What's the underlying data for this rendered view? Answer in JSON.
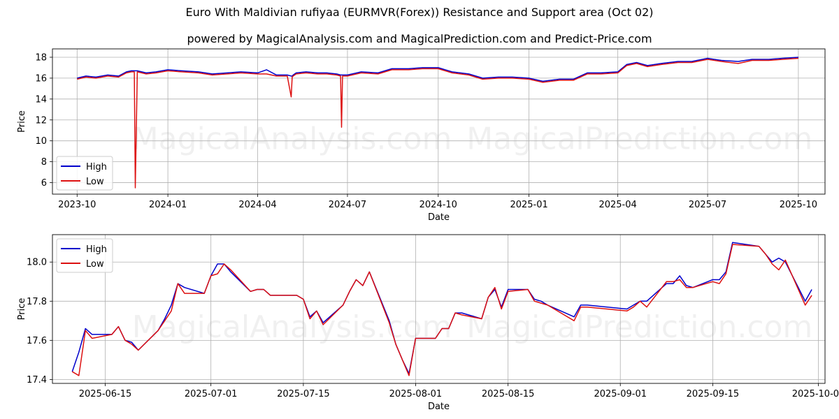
{
  "header": {
    "title": "Euro With Maldivian rufiyaa (EURMVR(Forex)) Resistance and Support area (Oct 02)",
    "subtitle": "powered by MagicalAnalysis.com and MagicalPrediction.com and Predict-Price.com"
  },
  "watermark": {
    "left": "MagicalAnalysis.com",
    "right": "MagicalPrediction.com"
  },
  "colors": {
    "high": "#0000cc",
    "low": "#dd1111",
    "grid": "#b0b0b0"
  },
  "chart_data": [
    {
      "type": "line",
      "title": "",
      "xlabel": "Date",
      "ylabel": "Price",
      "xlim": [
        "2023-09-06",
        "2025-10-28"
      ],
      "ylim": [
        4.9,
        18.8
      ],
      "x_ticks": [
        "2023-10",
        "2024-01",
        "2024-04",
        "2024-07",
        "2024-10",
        "2025-01",
        "2025-04",
        "2025-07",
        "2025-10"
      ],
      "x_tick_dates": [
        "2023-10-01",
        "2024-01-01",
        "2024-04-01",
        "2024-07-01",
        "2024-10-01",
        "2025-01-01",
        "2025-04-01",
        "2025-07-01",
        "2025-10-01"
      ],
      "y_ticks": [
        6,
        8,
        10,
        12,
        14,
        16,
        18
      ],
      "grid": true,
      "legend": "lower-left",
      "x": [
        "2023-10-01",
        "2023-10-10",
        "2023-10-20",
        "2023-11-01",
        "2023-11-12",
        "2023-11-20",
        "2023-11-25",
        "2023-11-28",
        "2023-11-29",
        "2023-12-01",
        "2023-12-10",
        "2023-12-20",
        "2024-01-01",
        "2024-01-15",
        "2024-02-01",
        "2024-02-15",
        "2024-03-01",
        "2024-03-15",
        "2024-04-01",
        "2024-04-10",
        "2024-04-20",
        "2024-05-01",
        "2024-05-05",
        "2024-05-06",
        "2024-05-07",
        "2024-05-10",
        "2024-05-20",
        "2024-06-01",
        "2024-06-10",
        "2024-06-20",
        "2024-06-24",
        "2024-06-25",
        "2024-06-26",
        "2024-07-01",
        "2024-07-15",
        "2024-08-01",
        "2024-08-15",
        "2024-09-01",
        "2024-09-15",
        "2024-10-01",
        "2024-10-15",
        "2024-11-01",
        "2024-11-15",
        "2024-12-01",
        "2024-12-15",
        "2025-01-01",
        "2025-01-15",
        "2025-02-01",
        "2025-02-15",
        "2025-03-01",
        "2025-03-15",
        "2025-04-01",
        "2025-04-10",
        "2025-04-20",
        "2025-05-01",
        "2025-05-15",
        "2025-06-01",
        "2025-06-15",
        "2025-07-01",
        "2025-07-15",
        "2025-08-01",
        "2025-08-15",
        "2025-09-01",
        "2025-09-15",
        "2025-10-01"
      ],
      "series": [
        {
          "name": "High",
          "values": [
            16.0,
            16.2,
            16.1,
            16.3,
            16.2,
            16.6,
            16.7,
            16.7,
            16.7,
            16.7,
            16.5,
            16.6,
            16.8,
            16.7,
            16.6,
            16.4,
            16.5,
            16.6,
            16.5,
            16.8,
            16.3,
            16.3,
            16.2,
            16.2,
            16.3,
            16.5,
            16.6,
            16.5,
            16.5,
            16.4,
            16.3,
            16.3,
            16.3,
            16.3,
            16.6,
            16.5,
            16.9,
            16.9,
            17.0,
            17.0,
            16.6,
            16.4,
            16.0,
            16.1,
            16.1,
            16.0,
            15.7,
            15.9,
            15.9,
            16.5,
            16.5,
            16.6,
            17.3,
            17.5,
            17.2,
            17.4,
            17.6,
            17.6,
            17.9,
            17.7,
            17.6,
            17.8,
            17.8,
            17.9,
            18.0
          ]
        },
        {
          "name": "Low",
          "values": [
            15.9,
            16.1,
            16.0,
            16.2,
            16.1,
            16.5,
            16.6,
            16.6,
            5.5,
            16.6,
            16.4,
            16.5,
            16.7,
            16.6,
            16.5,
            16.3,
            16.4,
            16.5,
            16.4,
            16.4,
            16.2,
            16.2,
            14.2,
            16.1,
            16.2,
            16.4,
            16.5,
            16.4,
            16.4,
            16.3,
            16.2,
            11.3,
            16.2,
            16.2,
            16.5,
            16.4,
            16.8,
            16.8,
            16.9,
            16.9,
            16.5,
            16.3,
            15.9,
            16.0,
            16.0,
            15.9,
            15.6,
            15.8,
            15.8,
            16.4,
            16.4,
            16.5,
            17.2,
            17.4,
            17.1,
            17.3,
            17.5,
            17.5,
            17.8,
            17.6,
            17.4,
            17.7,
            17.7,
            17.8,
            17.9
          ]
        }
      ]
    },
    {
      "type": "line",
      "title": "",
      "xlabel": "Date",
      "ylabel": "Price",
      "xlim": [
        "2025-06-07",
        "2025-10-02"
      ],
      "ylim": [
        17.38,
        18.14
      ],
      "x_ticks": [
        "2025-06-15",
        "2025-07-01",
        "2025-07-15",
        "2025-08-01",
        "2025-08-15",
        "2025-09-01",
        "2025-09-15",
        "2025-10-01"
      ],
      "y_ticks": [
        "17.4",
        "17.6",
        "17.8",
        "18.0"
      ],
      "grid": true,
      "legend": "upper-left",
      "x": [
        "2025-06-10",
        "2025-06-11",
        "2025-06-12",
        "2025-06-13",
        "2025-06-16",
        "2025-06-17",
        "2025-06-18",
        "2025-06-19",
        "2025-06-20",
        "2025-06-23",
        "2025-06-24",
        "2025-06-25",
        "2025-06-26",
        "2025-06-27",
        "2025-06-30",
        "2025-07-01",
        "2025-07-02",
        "2025-07-03",
        "2025-07-04",
        "2025-07-07",
        "2025-07-08",
        "2025-07-09",
        "2025-07-10",
        "2025-07-11",
        "2025-07-14",
        "2025-07-15",
        "2025-07-16",
        "2025-07-17",
        "2025-07-18",
        "2025-07-21",
        "2025-07-22",
        "2025-07-23",
        "2025-07-24",
        "2025-07-25",
        "2025-07-28",
        "2025-07-29",
        "2025-07-30",
        "2025-07-31",
        "2025-08-01",
        "2025-08-04",
        "2025-08-05",
        "2025-08-06",
        "2025-08-07",
        "2025-08-08",
        "2025-08-11",
        "2025-08-12",
        "2025-08-13",
        "2025-08-14",
        "2025-08-15",
        "2025-08-18",
        "2025-08-19",
        "2025-08-20",
        "2025-08-21",
        "2025-08-25",
        "2025-08-26",
        "2025-08-27",
        "2025-09-02",
        "2025-09-03",
        "2025-09-04",
        "2025-09-05",
        "2025-09-08",
        "2025-09-09",
        "2025-09-10",
        "2025-09-11",
        "2025-09-12",
        "2025-09-15",
        "2025-09-16",
        "2025-09-17",
        "2025-09-18",
        "2025-09-22",
        "2025-09-23",
        "2025-09-24",
        "2025-09-25",
        "2025-09-26",
        "2025-09-29",
        "2025-09-30"
      ],
      "series": [
        {
          "name": "High",
          "values": [
            17.44,
            17.54,
            17.66,
            17.63,
            17.63,
            17.67,
            17.6,
            17.59,
            17.55,
            17.65,
            17.71,
            17.78,
            17.89,
            17.87,
            17.84,
            17.93,
            17.99,
            17.99,
            17.95,
            17.85,
            17.86,
            17.86,
            17.83,
            17.83,
            17.83,
            17.81,
            17.72,
            17.75,
            17.69,
            17.78,
            17.85,
            17.91,
            17.88,
            17.95,
            17.7,
            17.58,
            17.5,
            17.43,
            17.61,
            17.61,
            17.66,
            17.66,
            17.74,
            17.74,
            17.71,
            17.82,
            17.86,
            17.77,
            17.86,
            17.86,
            17.81,
            17.8,
            17.78,
            17.72,
            17.78,
            17.78,
            17.76,
            17.78,
            17.8,
            17.8,
            17.89,
            17.89,
            17.93,
            17.88,
            17.87,
            17.91,
            17.91,
            17.95,
            18.1,
            18.08,
            18.04,
            18.0,
            18.02,
            18.0,
            17.8,
            17.86
          ]
        },
        {
          "name": "Low",
          "values": [
            17.44,
            17.42,
            17.65,
            17.61,
            17.63,
            17.67,
            17.6,
            17.58,
            17.55,
            17.65,
            17.7,
            17.75,
            17.89,
            17.84,
            17.84,
            17.93,
            17.94,
            17.99,
            17.96,
            17.85,
            17.86,
            17.86,
            17.83,
            17.83,
            17.83,
            17.81,
            17.71,
            17.75,
            17.68,
            17.78,
            17.85,
            17.91,
            17.88,
            17.95,
            17.69,
            17.58,
            17.5,
            17.42,
            17.61,
            17.61,
            17.66,
            17.66,
            17.74,
            17.73,
            17.71,
            17.82,
            17.87,
            17.76,
            17.85,
            17.86,
            17.8,
            17.79,
            17.78,
            17.7,
            17.77,
            17.77,
            17.75,
            17.77,
            17.8,
            17.77,
            17.9,
            17.9,
            17.91,
            17.87,
            17.87,
            17.9,
            17.89,
            17.94,
            18.09,
            18.08,
            18.04,
            17.99,
            17.96,
            18.01,
            17.78,
            17.83
          ]
        }
      ]
    }
  ]
}
